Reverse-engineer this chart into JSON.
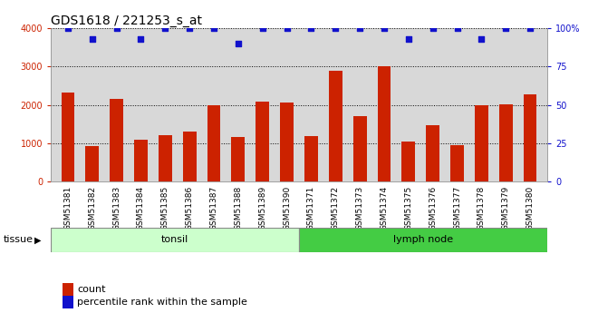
{
  "title": "GDS1618 / 221253_s_at",
  "samples": [
    "GSM51381",
    "GSM51382",
    "GSM51383",
    "GSM51384",
    "GSM51385",
    "GSM51386",
    "GSM51387",
    "GSM51388",
    "GSM51389",
    "GSM51390",
    "GSM51371",
    "GSM51372",
    "GSM51373",
    "GSM51374",
    "GSM51375",
    "GSM51376",
    "GSM51377",
    "GSM51378",
    "GSM51379",
    "GSM51380"
  ],
  "counts": [
    2320,
    930,
    2160,
    1090,
    1200,
    1300,
    1990,
    1150,
    2080,
    2050,
    1190,
    2880,
    1700,
    3000,
    1040,
    1480,
    960,
    2000,
    2020,
    2270
  ],
  "percentile": [
    100,
    93,
    100,
    93,
    100,
    100,
    100,
    90,
    100,
    100,
    100,
    100,
    100,
    100,
    93,
    100,
    100,
    93,
    100,
    100
  ],
  "tonsil_count": 10,
  "lymph_count": 10,
  "tonsil_label": "tonsil",
  "lymph_label": "lymph node",
  "tissue_label": "tissue",
  "bar_color": "#cc2200",
  "dot_color": "#1111cc",
  "tonsil_bg": "#ccffcc",
  "lymph_bg": "#44cc44",
  "ylim_left": [
    0,
    4000
  ],
  "ylim_right": [
    0,
    100
  ],
  "yticks_left": [
    0,
    1000,
    2000,
    3000,
    4000
  ],
  "yticks_right": [
    0,
    25,
    50,
    75,
    100
  ],
  "legend_count_label": "count",
  "legend_pct_label": "percentile rank within the sample",
  "title_fontsize": 10,
  "tick_fontsize": 7,
  "axis_bg": "#d8d8d8",
  "fig_bg": "#ffffff"
}
